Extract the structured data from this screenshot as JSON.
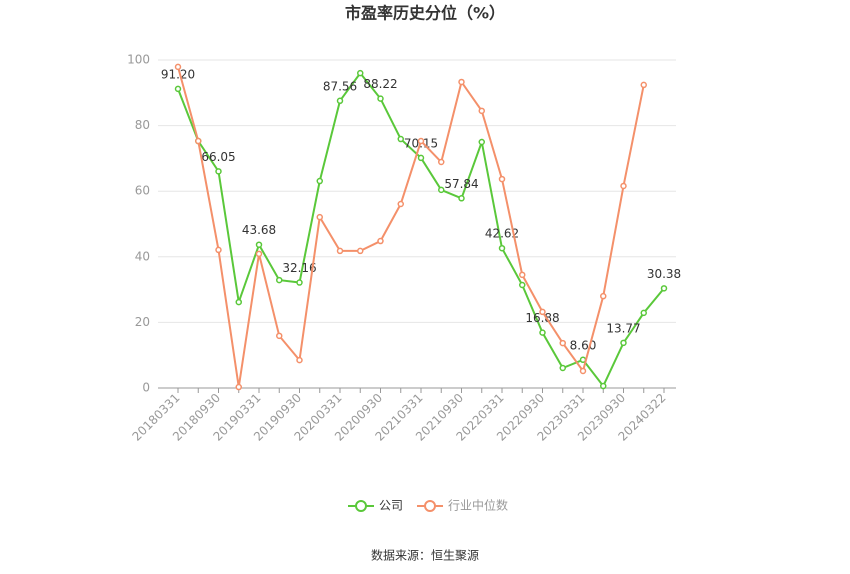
{
  "chart_data": {
    "type": "line",
    "title": "市盈率历史分位（%）",
    "categories": [
      "20180331",
      null,
      "20180930",
      null,
      "20190331",
      null,
      "20190930",
      null,
      "20200331",
      null,
      "20200930",
      null,
      "20210331",
      null,
      "20210930",
      null,
      "20220331",
      null,
      "20220930",
      null,
      "20230331",
      null,
      "20230930",
      null,
      "20240322"
    ],
    "series": [
      {
        "name": "公司",
        "color": "#5ac83a",
        "values": [
          91.2,
          75.3,
          66.05,
          26.2,
          43.68,
          32.9,
          32.16,
          63.1,
          87.56,
          96.0,
          88.22,
          75.9,
          70.15,
          60.4,
          57.84,
          75.0,
          42.62,
          31.4,
          16.88,
          6.1,
          8.6,
          0.6,
          13.77,
          22.9,
          30.38
        ],
        "value_labels": [
          "91.20",
          null,
          "66.05",
          null,
          "43.68",
          null,
          "32.16",
          null,
          "87.56",
          null,
          "88.22",
          null,
          "70.15",
          null,
          "57.84",
          null,
          "42.62",
          null,
          "16.88",
          null,
          "8.60",
          null,
          "13.77",
          null,
          "30.38"
        ]
      },
      {
        "name": "行业中位数",
        "color": "#f4906a",
        "values": [
          97.9,
          75.3,
          42.1,
          0.3,
          40.9,
          15.9,
          8.5,
          52.1,
          41.8,
          41.8,
          44.8,
          56.1,
          75.3,
          68.9,
          93.3,
          84.5,
          63.7,
          34.5,
          23.2,
          13.7,
          5.2,
          28.0,
          61.6,
          92.4,
          null
        ]
      }
    ],
    "ylim": [
      0,
      100
    ],
    "yticks": [
      0,
      20,
      40,
      60,
      80,
      100
    ],
    "grid": true,
    "source": "数据来源：恒生聚源"
  }
}
